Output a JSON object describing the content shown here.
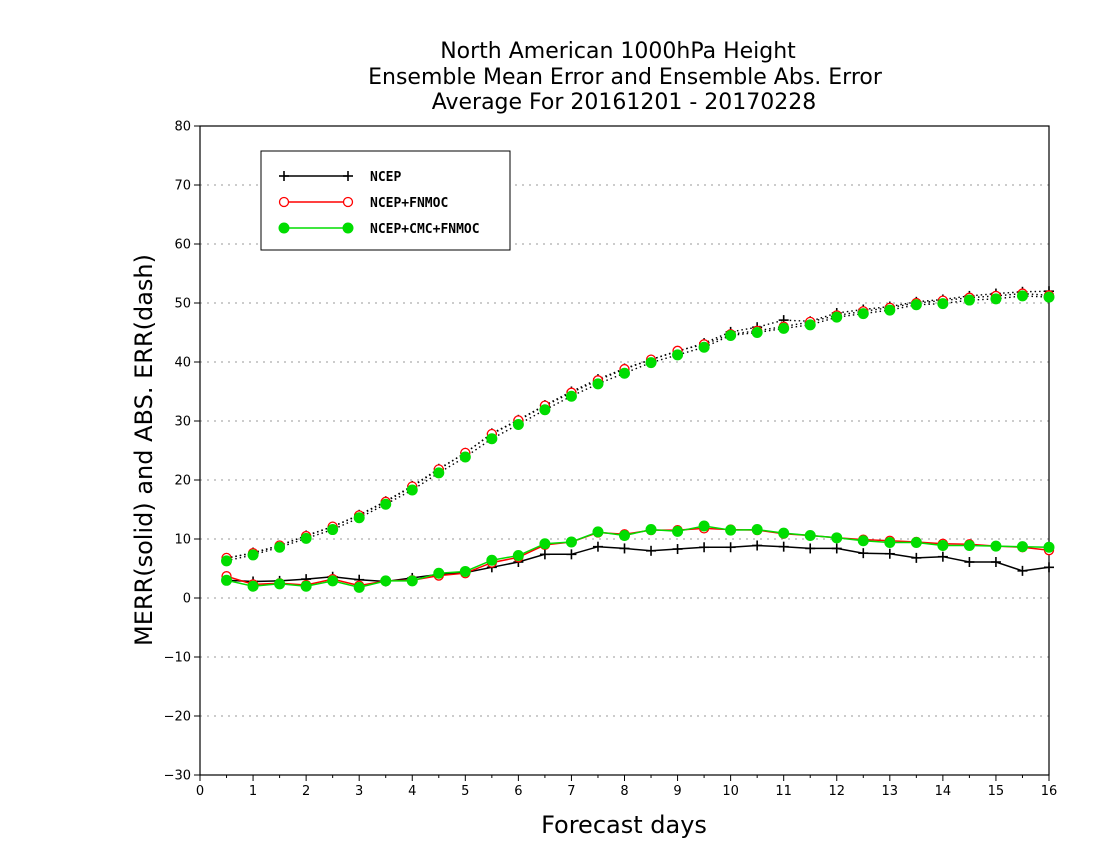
{
  "chart_data": {
    "type": "line",
    "title": [
      "North American 1000hPa Height",
      "Ensemble Mean Error and Ensemble Abs. Error",
      "Average For 20161201 - 20170228"
    ],
    "xlabel": "Forecast days",
    "ylabel": "MERR(solid) and ABS. ERR(dash)",
    "xlim": [
      0,
      16
    ],
    "ylim": [
      -30,
      80
    ],
    "xticks": [
      "0",
      "1",
      "2",
      "3",
      "4",
      "5",
      "6",
      "7",
      "8",
      "9",
      "10",
      "11",
      "12",
      "13",
      "14",
      "15",
      "16"
    ],
    "yticks": [
      "80",
      "70",
      "60",
      "50",
      "40",
      "30",
      "20",
      "10",
      "0",
      "−10",
      "−20",
      "−30"
    ],
    "grid": true,
    "legend_position": "top-left",
    "x": [
      0.5,
      1,
      1.5,
      2,
      2.5,
      3,
      3.5,
      4,
      4.5,
      5,
      5.5,
      6,
      6.5,
      7,
      7.5,
      8,
      8.5,
      9,
      9.5,
      10,
      10.5,
      11,
      11.5,
      12,
      12.5,
      13,
      13.5,
      14,
      14.5,
      15,
      15.5,
      16
    ],
    "series": [
      {
        "name": "NCEP",
        "color": "#000000",
        "marker": "plus",
        "merr": [
          3.0,
          2.8,
          2.9,
          3.2,
          3.6,
          3.1,
          2.8,
          3.4,
          4.0,
          4.3,
          5.2,
          6.1,
          7.4,
          7.4,
          8.7,
          8.4,
          8.0,
          8.3,
          8.6,
          8.6,
          8.9,
          8.7,
          8.4,
          8.4,
          7.6,
          7.5,
          6.8,
          7.0,
          6.1,
          6.1,
          4.6,
          5.2
        ],
        "abs_err": [
          6.7,
          7.7,
          8.9,
          10.6,
          12.1,
          14.1,
          16.4,
          19.0,
          21.9,
          24.6,
          27.9,
          30.2,
          32.7,
          35.0,
          37.1,
          38.9,
          40.4,
          41.8,
          43.2,
          45.1,
          45.9,
          47.1,
          46.9,
          48.3,
          48.9,
          49.4,
          50.2,
          50.6,
          51.2,
          51.6,
          51.9,
          52.0
        ]
      },
      {
        "name": "NCEP+FNMOC",
        "color": "#ff0000",
        "marker": "open-circle",
        "merr": [
          3.7,
          2.3,
          2.5,
          2.2,
          3.2,
          2.1,
          2.9,
          3.0,
          3.8,
          4.2,
          6.0,
          6.9,
          9.0,
          9.5,
          11.1,
          10.8,
          11.5,
          11.5,
          11.8,
          11.6,
          11.5,
          10.9,
          10.6,
          10.2,
          9.9,
          9.7,
          9.5,
          9.2,
          9.1,
          8.8,
          8.6,
          8.1
        ],
        "abs_err": [
          6.8,
          7.6,
          8.9,
          10.5,
          12.1,
          14.0,
          16.3,
          18.9,
          21.8,
          24.6,
          27.8,
          30.1,
          32.6,
          34.8,
          36.9,
          38.8,
          40.4,
          41.9,
          43.0,
          44.7,
          45.3,
          46.0,
          46.8,
          47.9,
          48.6,
          49.2,
          50.0,
          50.4,
          50.9,
          51.2,
          51.6,
          51.3
        ]
      },
      {
        "name": "NCEP+CMC+FNMOC",
        "color": "#00dd00",
        "marker": "filled-circle",
        "merr": [
          3.0,
          2.0,
          2.4,
          2.0,
          2.9,
          1.8,
          2.9,
          2.9,
          4.2,
          4.5,
          6.4,
          7.2,
          9.2,
          9.5,
          11.2,
          10.6,
          11.6,
          11.3,
          12.2,
          11.5,
          11.6,
          11.0,
          10.6,
          10.2,
          9.7,
          9.4,
          9.4,
          8.9,
          8.9,
          8.8,
          8.7,
          8.6
        ],
        "abs_err": [
          6.3,
          7.3,
          8.6,
          10.1,
          11.6,
          13.6,
          15.9,
          18.3,
          21.2,
          23.9,
          27.0,
          29.4,
          31.9,
          34.2,
          36.3,
          38.1,
          39.9,
          41.2,
          42.5,
          44.5,
          45.0,
          45.7,
          46.3,
          47.6,
          48.2,
          48.8,
          49.7,
          49.9,
          50.5,
          50.7,
          51.2,
          51.0
        ]
      }
    ]
  }
}
